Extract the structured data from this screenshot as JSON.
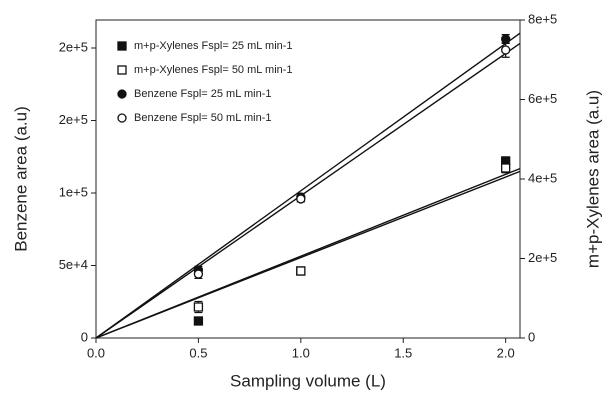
{
  "chart_data": {
    "type": "scatter",
    "x_label": "Sampling volume (L)",
    "y_label": "Benzene area (a.u)",
    "y2_label": "m+p-Xylenes area (a.u)",
    "xlim": [
      0,
      2.07
    ],
    "xticks": [
      {
        "value": 0,
        "label": "0.0"
      },
      0.5,
      {
        "value": 1,
        "label": "1.0"
      },
      1.5,
      {
        "value": 2,
        "label": "2.0"
      }
    ],
    "ylim": [
      0,
      219300
    ],
    "yticks": [
      0,
      {
        "value": 50000,
        "label": "5e+4"
      },
      {
        "value": 100000,
        "label": "1e+5"
      },
      {
        "value": 150000,
        "label": "2e+5"
      },
      {
        "value": 200000,
        "label": "2e+5"
      }
    ],
    "y2lim": [
      0,
      800000
    ],
    "y2ticks": [
      0,
      {
        "value": 200000,
        "label": "2e+5"
      },
      {
        "value": 400000,
        "label": "4e+5"
      },
      {
        "value": 600000,
        "label": "6e+5"
      },
      {
        "value": 800000,
        "label": "8e+5"
      }
    ],
    "legend": "top-left",
    "series": [
      {
        "name": "m+p-Xylenes Fspl= 25 mL min-1",
        "color": "#111111",
        "marker": "square",
        "filled": true,
        "axis": "y2",
        "x": [
          0.5,
          1,
          2
        ],
        "values": [
          42800,
          168600,
          445300
        ],
        "errors": [
          5000,
          6000,
          10000
        ]
      },
      {
        "name": "m+p-Xylenes Fspl= 50 mL min-1",
        "color": "#111111",
        "marker": "square",
        "filled": false,
        "axis": "y2",
        "x": [
          0.5,
          1,
          2
        ],
        "values": [
          78000,
          168600,
          427700
        ],
        "errors": [
          14000,
          6000,
          12000
        ]
      },
      {
        "name": "Benzene Fspl= 25 mL min-1",
        "color": "#111111",
        "marker": "circle",
        "filled": true,
        "x": [
          0.5,
          1,
          2
        ],
        "values": [
          46900,
          97200,
          206200
        ],
        "errors": [
          2500,
          2500,
          3000
        ]
      },
      {
        "name": "Benzene Fspl= 50 mL min-1",
        "color": "#111111",
        "marker": "circle",
        "filled": false,
        "x": [
          0.5,
          1,
          2
        ],
        "values": [
          44100,
          95900,
          198600
        ],
        "errors": [
          3000,
          2000,
          5000
        ]
      }
    ]
  }
}
